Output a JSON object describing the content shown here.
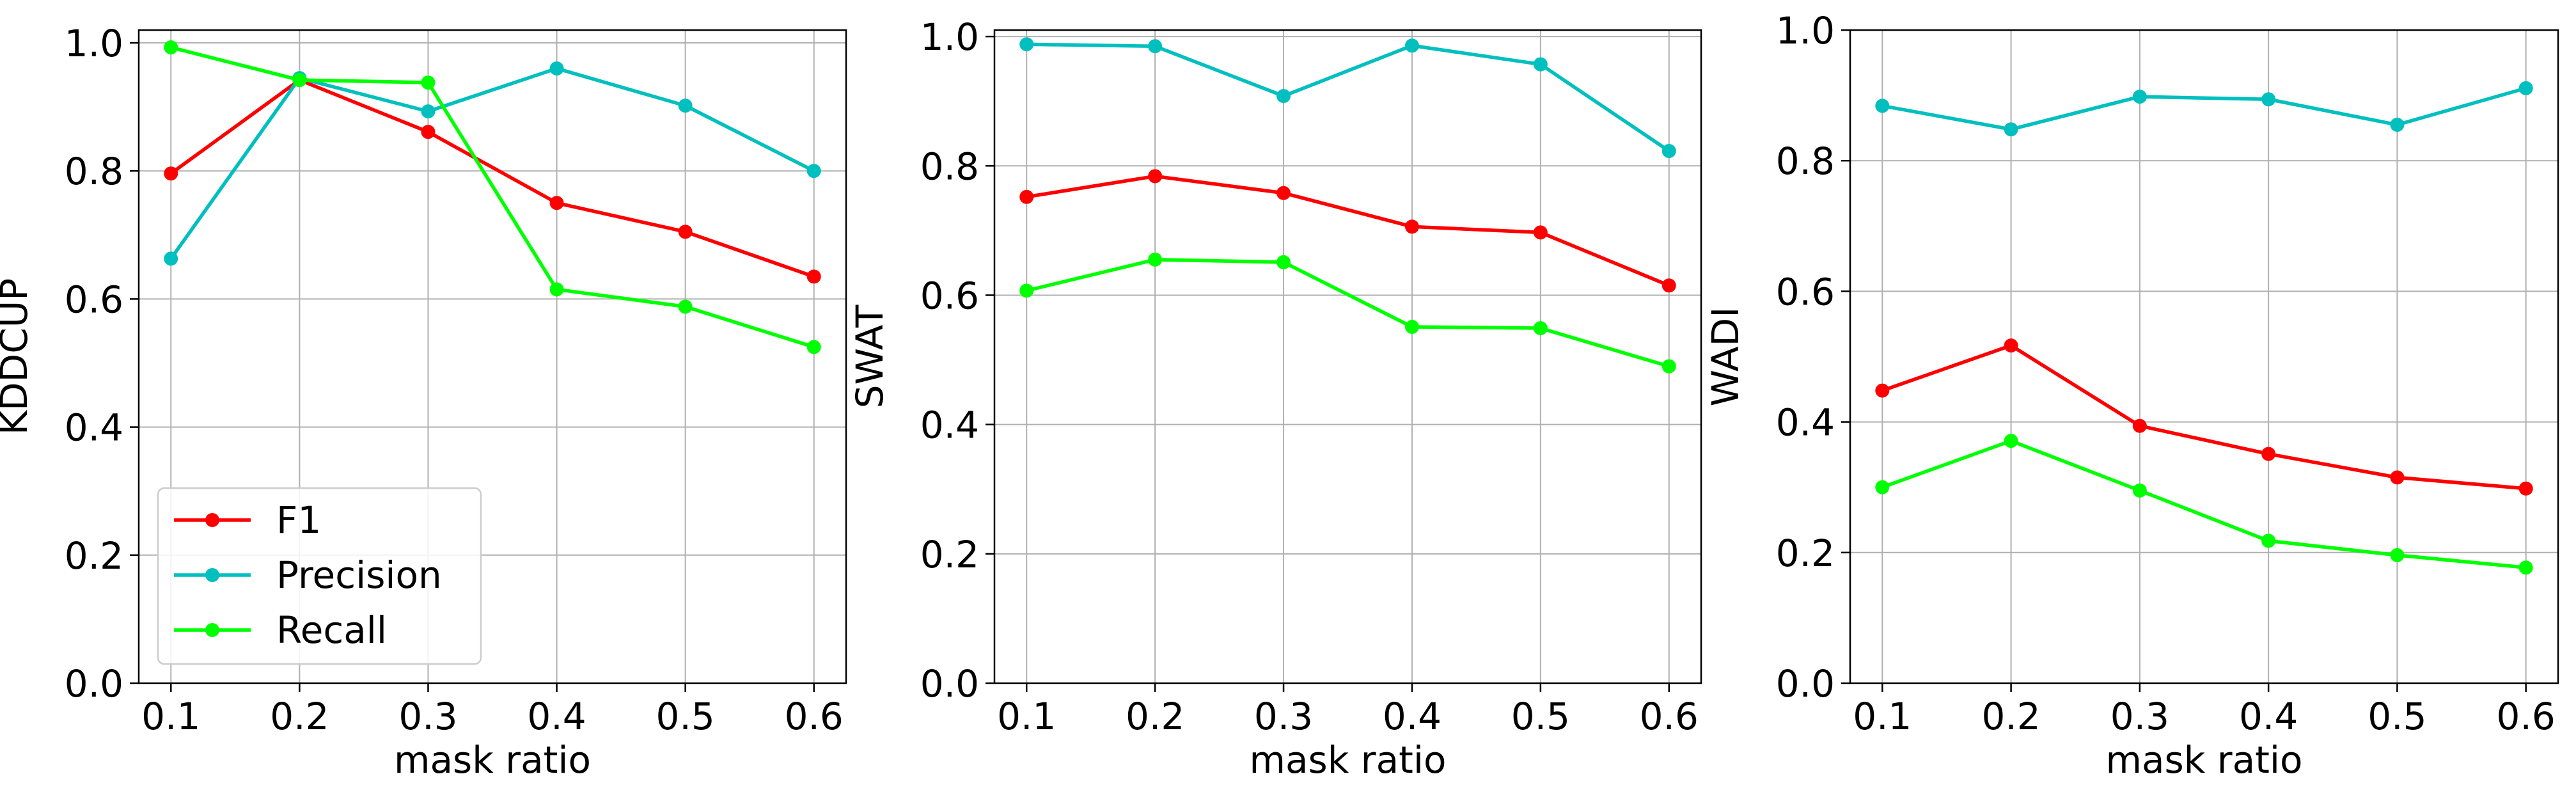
{
  "chart_data": [
    {
      "type": "line",
      "x": [
        0.1,
        0.2,
        0.3,
        0.4,
        0.5,
        0.6
      ],
      "x_ticks": [
        "0.1",
        "0.2",
        "0.3",
        "0.4",
        "0.5",
        "0.6"
      ],
      "y_ticks": [
        "0.0",
        "0.2",
        "0.4",
        "0.6",
        "0.8",
        "1.0"
      ],
      "xlim": [
        0.075,
        0.625
      ],
      "ylim": [
        0.0,
        1.02
      ],
      "xlabel": "mask ratio",
      "ylabel": "KDDCUP",
      "grid": true,
      "legend": "lower-left",
      "series": [
        {
          "name": "F1",
          "color": "#ff0000",
          "values": [
            0.796,
            0.942,
            0.861,
            0.75,
            0.705,
            0.635
          ]
        },
        {
          "name": "Precision",
          "color": "#00bfbf",
          "values": [
            0.663,
            0.945,
            0.893,
            0.96,
            0.902,
            0.8
          ]
        },
        {
          "name": "Recall",
          "color": "#00ff00",
          "values": [
            0.993,
            0.942,
            0.938,
            0.615,
            0.588,
            0.525
          ]
        }
      ]
    },
    {
      "type": "line",
      "x": [
        0.1,
        0.2,
        0.3,
        0.4,
        0.5,
        0.6
      ],
      "x_ticks": [
        "0.1",
        "0.2",
        "0.3",
        "0.4",
        "0.5",
        "0.6"
      ],
      "y_ticks": [
        "0.0",
        "0.2",
        "0.4",
        "0.6",
        "0.8",
        "1.0"
      ],
      "xlim": [
        0.075,
        0.625
      ],
      "ylim": [
        0.0,
        1.01
      ],
      "xlabel": "mask ratio",
      "ylabel": "SWAT",
      "grid": true,
      "legend": "none",
      "series": [
        {
          "name": "F1",
          "color": "#ff0000",
          "values": [
            0.752,
            0.784,
            0.758,
            0.706,
            0.697,
            0.615
          ]
        },
        {
          "name": "Precision",
          "color": "#00bfbf",
          "values": [
            0.988,
            0.985,
            0.908,
            0.986,
            0.957,
            0.823
          ]
        },
        {
          "name": "Recall",
          "color": "#00ff00",
          "values": [
            0.607,
            0.655,
            0.651,
            0.551,
            0.549,
            0.49
          ]
        }
      ]
    },
    {
      "type": "line",
      "x": [
        0.1,
        0.2,
        0.3,
        0.4,
        0.5,
        0.6
      ],
      "x_ticks": [
        "0.1",
        "0.2",
        "0.3",
        "0.4",
        "0.5",
        "0.6"
      ],
      "y_ticks": [
        "0.0",
        "0.2",
        "0.4",
        "0.6",
        "0.8",
        "1.0"
      ],
      "xlim": [
        0.075,
        0.625
      ],
      "ylim": [
        0.0,
        1.0
      ],
      "xlabel": "mask ratio",
      "ylabel": "WADI",
      "grid": true,
      "legend": "none",
      "series": [
        {
          "name": "F1",
          "color": "#ff0000",
          "values": [
            0.448,
            0.517,
            0.394,
            0.351,
            0.315,
            0.298
          ]
        },
        {
          "name": "Precision",
          "color": "#00bfbf",
          "values": [
            0.884,
            0.848,
            0.898,
            0.894,
            0.855,
            0.911
          ]
        },
        {
          "name": "Recall",
          "color": "#00ff00",
          "values": [
            0.3,
            0.371,
            0.295,
            0.218,
            0.196,
            0.177
          ]
        }
      ]
    }
  ]
}
